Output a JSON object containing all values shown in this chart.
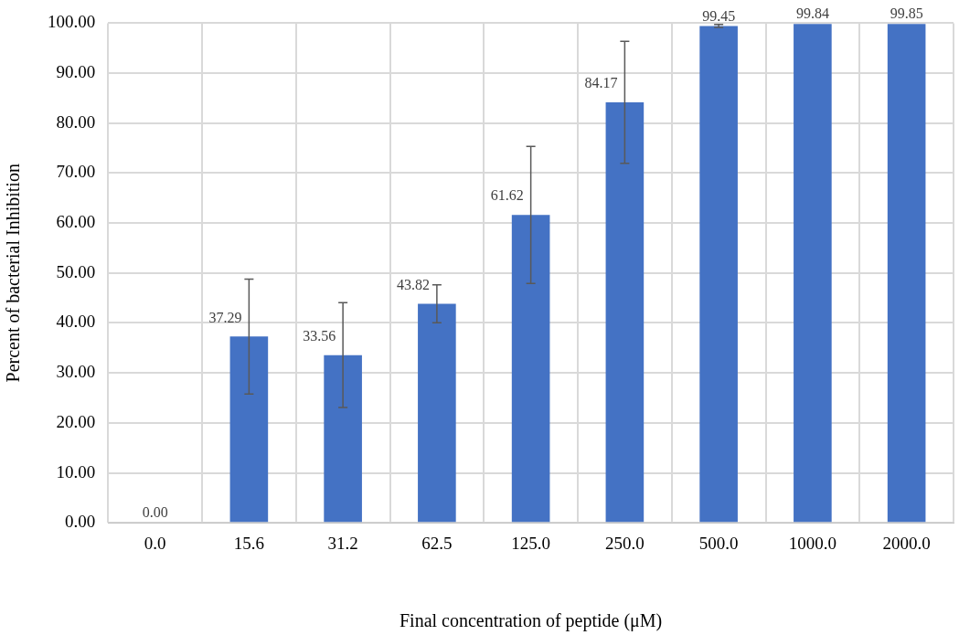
{
  "chart_data": {
    "type": "bar",
    "xlabel": "Final concentration of peptide (μM)",
    "ylabel": "Percent of bacterial Inhibition",
    "categories": [
      "0.0",
      "15.6",
      "31.2",
      "62.5",
      "125.0",
      "250.0",
      "500.0",
      "1000.0",
      "2000.0"
    ],
    "values": [
      0.0,
      37.29,
      33.56,
      43.82,
      61.62,
      84.17,
      99.45,
      99.84,
      99.85
    ],
    "errors": [
      null,
      11.5,
      10.5,
      3.8,
      13.7,
      12.2,
      0.3,
      null,
      null
    ],
    "value_labels": [
      "0.00",
      "37.29",
      "33.56",
      "43.82",
      "61.62",
      "84.17",
      "99.45",
      "99.84",
      "99.85"
    ],
    "color": "#4472c4",
    "ylim": [
      0,
      100
    ],
    "yticks": [
      {
        "value": 0,
        "label": "0.00"
      },
      {
        "value": 10,
        "label": "10.00"
      },
      {
        "value": 20,
        "label": "20.00"
      },
      {
        "value": 30,
        "label": "30.00"
      },
      {
        "value": 40,
        "label": "40.00"
      },
      {
        "value": 50,
        "label": "50.00"
      },
      {
        "value": 60,
        "label": "60.00"
      },
      {
        "value": 70,
        "label": "70.00"
      },
      {
        "value": 80,
        "label": "80.00"
      },
      {
        "value": 90,
        "label": "90.00"
      },
      {
        "value": 100,
        "label": "100.00"
      }
    ],
    "grid": true,
    "legend": false
  }
}
